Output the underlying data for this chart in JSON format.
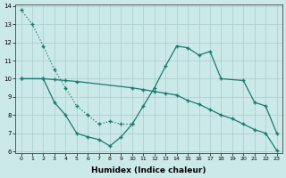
{
  "xlabel": "Humidex (Indice chaleur)",
  "line_color": "#1a7a6e",
  "bg_color": "#cce9e9",
  "grid_color": "#afd0d0",
  "ylim": [
    6,
    14
  ],
  "xlim": [
    -0.5,
    23.5
  ],
  "yticks": [
    6,
    7,
    8,
    9,
    10,
    11,
    12,
    13,
    14
  ],
  "xticks": [
    0,
    1,
    2,
    3,
    4,
    5,
    6,
    7,
    8,
    9,
    10,
    11,
    12,
    13,
    14,
    15,
    16,
    17,
    18,
    19,
    20,
    21,
    22,
    23
  ],
  "dotted_x": [
    0,
    1,
    2,
    3,
    4,
    5,
    6,
    7,
    8,
    9,
    10
  ],
  "dotted_y": [
    13.8,
    13.0,
    11.8,
    10.5,
    9.5,
    8.5,
    8.0,
    7.5,
    7.65,
    7.5,
    7.5
  ],
  "wavy_x": [
    0,
    2,
    3,
    4,
    5,
    6,
    7,
    8,
    9,
    10,
    11,
    12,
    13,
    14,
    15,
    16,
    17,
    18,
    20,
    21,
    22,
    23
  ],
  "wavy_y": [
    10.0,
    10.0,
    8.7,
    8.0,
    7.0,
    6.8,
    6.65,
    6.3,
    6.8,
    7.5,
    8.5,
    9.5,
    10.7,
    11.8,
    11.7,
    11.3,
    11.5,
    10.0,
    9.9,
    8.7,
    8.5,
    7.0
  ],
  "linear_x": [
    0,
    2,
    3,
    4,
    5,
    10,
    11,
    12,
    13,
    14,
    15,
    16,
    17,
    18,
    19,
    20,
    21,
    22,
    23
  ],
  "linear_y": [
    10.0,
    10.0,
    9.95,
    9.9,
    9.85,
    9.5,
    9.4,
    9.3,
    9.2,
    9.1,
    8.8,
    8.6,
    8.3,
    8.0,
    7.8,
    7.5,
    7.2,
    7.0,
    6.05
  ]
}
